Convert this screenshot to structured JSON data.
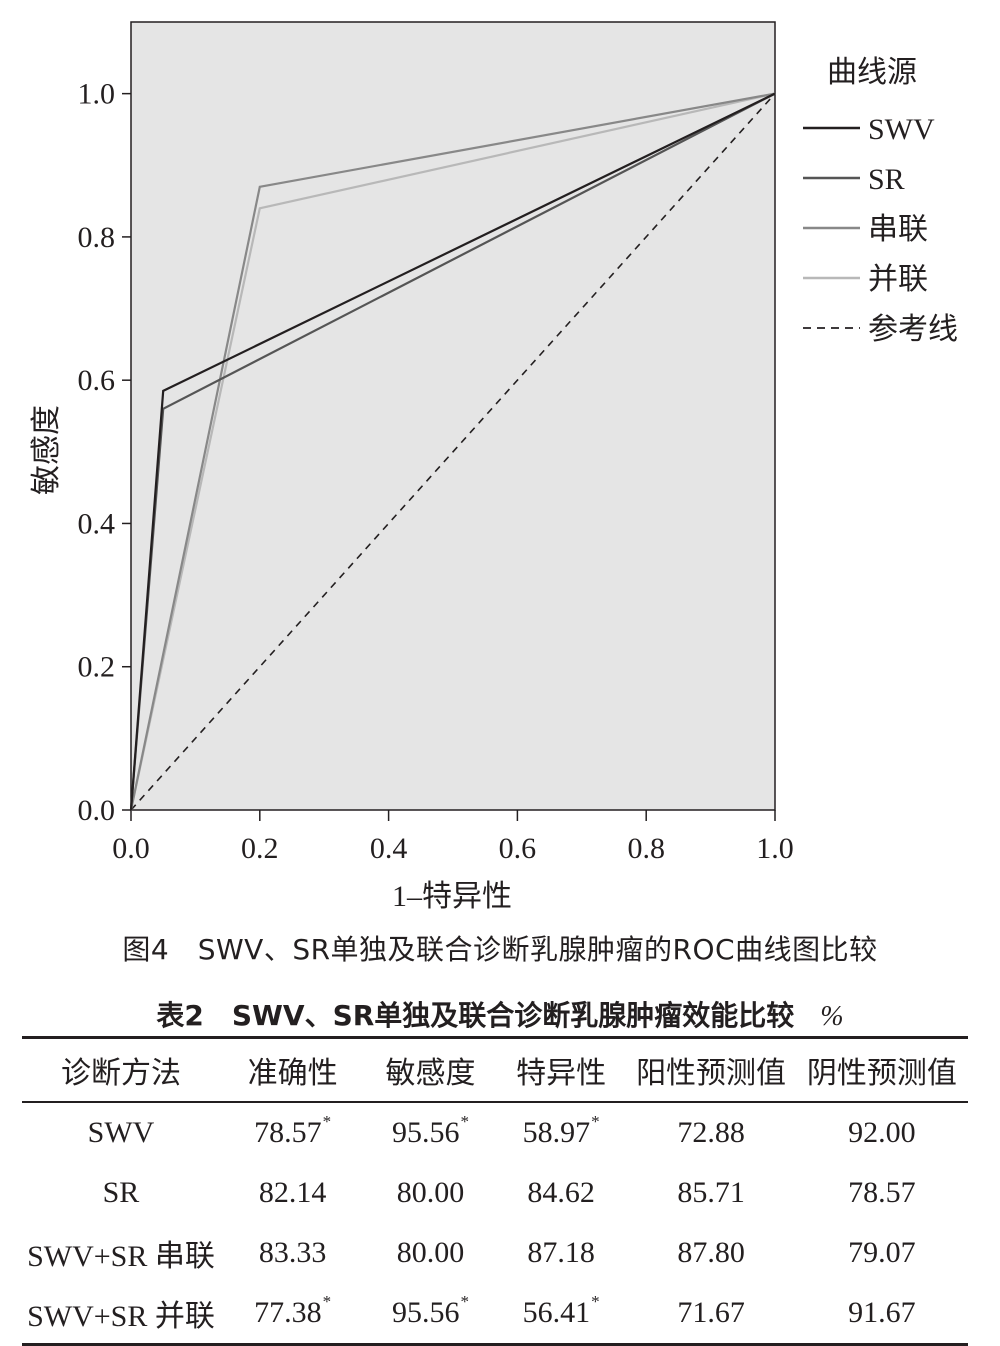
{
  "chart_data": {
    "type": "line",
    "xlabel": "1–特异性",
    "ylabel": "敏感度",
    "xlim": [
      0,
      1
    ],
    "ylim": [
      0,
      1.1
    ],
    "x_ticks": [
      "0.0",
      "0.2",
      "0.4",
      "0.6",
      "0.8",
      "1.0"
    ],
    "y_ticks": [
      "0.0",
      "0.2",
      "0.4",
      "0.6",
      "0.8",
      "1.0"
    ],
    "background": "#e5e5e5",
    "legend_title": "曲线源",
    "legend_position": "right",
    "series": [
      {
        "name": "SWV",
        "color": "#231f20",
        "dash": false,
        "points": [
          [
            0,
            0
          ],
          [
            0.05,
            0.585
          ],
          [
            1,
            1
          ]
        ]
      },
      {
        "name": "SR",
        "color": "#555555",
        "dash": false,
        "points": [
          [
            0,
            0
          ],
          [
            0.05,
            0.56
          ],
          [
            1,
            1
          ]
        ]
      },
      {
        "name": "串联",
        "color": "#888888",
        "dash": false,
        "points": [
          [
            0,
            0
          ],
          [
            0.2,
            0.87
          ],
          [
            1,
            1
          ]
        ]
      },
      {
        "name": "并联",
        "color": "#b8b8b8",
        "dash": false,
        "points": [
          [
            0,
            0
          ],
          [
            0.2,
            0.84
          ],
          [
            1,
            1
          ]
        ]
      },
      {
        "name": "参考线",
        "color": "#231f20",
        "dash": true,
        "points": [
          [
            0,
            0
          ],
          [
            1,
            1
          ]
        ]
      }
    ]
  },
  "figure_caption": "图4　SWV、SR单独及联合诊断乳腺肿瘤的ROC曲线图比较",
  "table": {
    "caption": "表2　SWV、SR单独及联合诊断乳腺肿瘤效能比较",
    "unit": "%",
    "headers": [
      "诊断方法",
      "准确性",
      "敏感度",
      "特异性",
      "阳性预测值",
      "阴性预测值"
    ],
    "rows": [
      {
        "method": "SWV",
        "values": [
          "78.57",
          "95.56",
          "58.97",
          "72.88",
          "92.00"
        ],
        "marks": [
          "*",
          "*",
          "*",
          "",
          ""
        ]
      },
      {
        "method": "SR",
        "values": [
          "82.14",
          "80.00",
          "84.62",
          "85.71",
          "78.57"
        ],
        "marks": [
          "",
          "",
          "",
          "",
          ""
        ]
      },
      {
        "method": "SWV+SR 串联",
        "values": [
          "83.33",
          "80.00",
          "87.18",
          "87.80",
          "79.07"
        ],
        "marks": [
          "",
          "",
          "",
          "",
          ""
        ]
      },
      {
        "method": "SWV+SR 并联",
        "values": [
          "77.38",
          "95.56",
          "56.41",
          "71.67",
          "91.67"
        ],
        "marks": [
          "*",
          "*",
          "*",
          "",
          ""
        ]
      }
    ]
  }
}
